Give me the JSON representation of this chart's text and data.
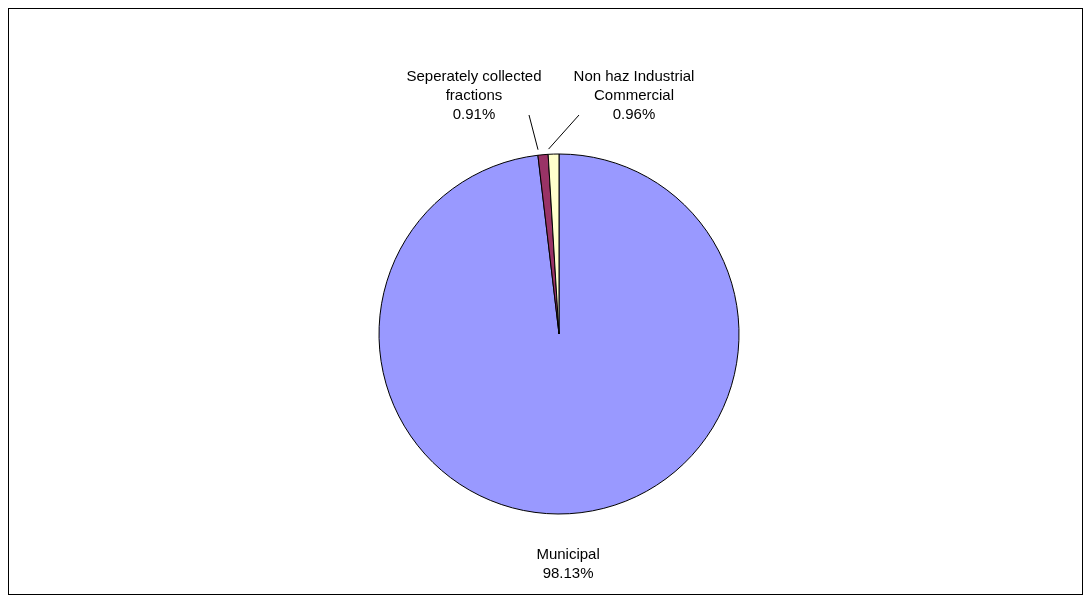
{
  "chart_data": {
    "type": "pie",
    "categories": [
      "Municipal",
      "Seperately collected fractions",
      "Non haz Industrial Commercial"
    ],
    "values": [
      98.13,
      0.91,
      0.96
    ],
    "colors": [
      "#9999ff",
      "#993366",
      "#ffffcc"
    ],
    "value_labels": [
      "98.13%",
      "0.91%",
      "0.96%"
    ],
    "legend": false
  }
}
